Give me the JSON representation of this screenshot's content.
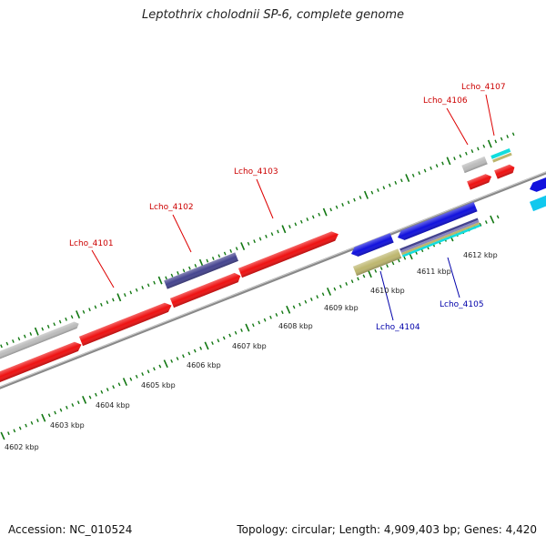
{
  "title": "Leptothrix cholodnii SP-6, complete genome",
  "footer": {
    "accession": "Accession: NC_010524",
    "topology": "Topology: circular; Length: 4,909,403 bp; Genes: 4,420"
  },
  "colors": {
    "red": "#ee1111",
    "grey": "#bbbbbb",
    "indigo": "#45448f",
    "blue": "#1111dd",
    "khaki": "#bdb66e",
    "cyan": "#11dddd",
    "tick": "#117711",
    "forward_label": "#cc0000",
    "reverse_label": "#0000aa"
  },
  "ruler": {
    "unit": "kbp",
    "tick_labels": [
      "4602 kbp",
      "4603 kbp",
      "4604 kbp",
      "4605 kbp",
      "4606 kbp",
      "4607 kbp",
      "4608 kbp",
      "4609 kbp",
      "4610 kbp",
      "4611 kbp",
      "4612 kbp"
    ]
  },
  "gene_labels": {
    "lcho_4101": "Lcho_4101",
    "lcho_4102": "Lcho_4102",
    "lcho_4103": "Lcho_4103",
    "lcho_4104": "Lcho_4104",
    "lcho_4105": "Lcho_4105",
    "lcho_4106": "Lcho_4106",
    "lcho_4107": "Lcho_4107"
  }
}
